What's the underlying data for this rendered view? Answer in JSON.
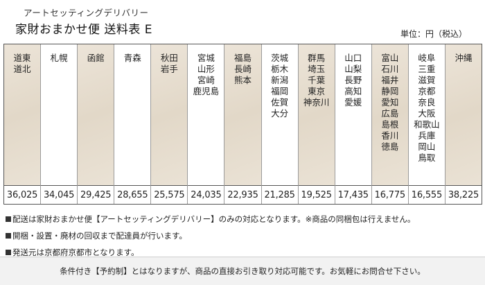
{
  "header": {
    "subtitle": "アートセッティングデリバリー",
    "title": "家財おまかせ便 送料表 E",
    "unit": "単位：円（税込）"
  },
  "columns": [
    {
      "regions": [
        "道東",
        "道北"
      ],
      "price": "36,025",
      "shaded": true
    },
    {
      "regions": [
        "札幌"
      ],
      "price": "34,045",
      "shaded": false
    },
    {
      "regions": [
        "函館"
      ],
      "price": "29,425",
      "shaded": true
    },
    {
      "regions": [
        "青森"
      ],
      "price": "28,655",
      "shaded": false
    },
    {
      "regions": [
        "秋田",
        "岩手"
      ],
      "price": "25,575",
      "shaded": true
    },
    {
      "regions": [
        "宮城",
        "山形",
        "宮崎",
        "鹿児島"
      ],
      "price": "24,035",
      "shaded": false
    },
    {
      "regions": [
        "福島",
        "長崎",
        "熊本"
      ],
      "price": "22,935",
      "shaded": true
    },
    {
      "regions": [
        "茨城",
        "栃木",
        "新潟",
        "福岡",
        "佐賀",
        "大分"
      ],
      "price": "21,285",
      "shaded": false
    },
    {
      "regions": [
        "群馬",
        "埼玉",
        "千葉",
        "東京",
        "神奈川"
      ],
      "price": "19,525",
      "shaded": true
    },
    {
      "regions": [
        "山口",
        "山梨",
        "長野",
        "高知",
        "愛媛"
      ],
      "price": "17,435",
      "shaded": false
    },
    {
      "regions": [
        "富山",
        "石川",
        "福井",
        "静岡",
        "愛知",
        "広島",
        "島根",
        "香川",
        "徳島"
      ],
      "price": "16,775",
      "shaded": true
    },
    {
      "regions": [
        "岐阜",
        "三重",
        "滋賀",
        "京都",
        "奈良",
        "大阪",
        "和歌山",
        "兵庫",
        "岡山",
        "鳥取"
      ],
      "price": "16,555",
      "shaded": false
    },
    {
      "regions": [
        "沖縄"
      ],
      "price": "38,225",
      "shaded": true
    }
  ],
  "notes": [
    "配送は家財おまかせ便【アートセッティングデリバリー】のみの対応となります。※商品の同梱包は行えません。",
    "開梱・設置・廃材の回収まで配達員が行います。",
    "発送元は京都府京都市となります。"
  ],
  "footer": "条件付き【予約制】とはなりますが、商品の直接お引き取り対応可能です。お気軽にお問合せ下さい。"
}
